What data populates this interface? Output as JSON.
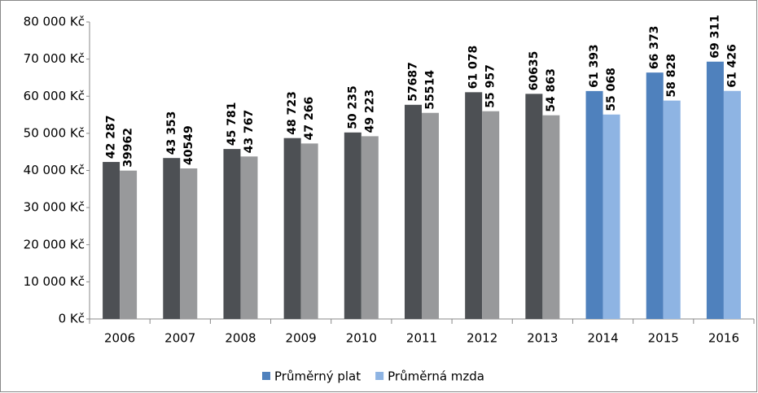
{
  "chart_data": {
    "type": "bar",
    "categories": [
      "2006",
      "2007",
      "2008",
      "2009",
      "2010",
      "2011",
      "2012",
      "2013",
      "2014",
      "2015",
      "2016"
    ],
    "series": [
      {
        "name": "Průměrný plat",
        "color": "#4f81bd",
        "colors": [
          "#4d5054",
          "#4d5054",
          "#4d5054",
          "#4d5054",
          "#4d5054",
          "#4d5054",
          "#4d5054",
          "#4d5054",
          "#4f81bd",
          "#4f81bd",
          "#4f81bd"
        ],
        "values": [
          42287,
          43353,
          45781,
          48723,
          50235,
          57687,
          61078,
          60635,
          61393,
          66373,
          69311
        ],
        "value_labels": [
          "42 287",
          "43 353",
          "45 781",
          "48 723",
          "50 235",
          "57687",
          "61 078",
          "60635",
          "61 393",
          "66 373",
          "69 311"
        ]
      },
      {
        "name": "Průměrná mzda",
        "color": "#8eb4e3",
        "colors": [
          "#98999b",
          "#98999b",
          "#98999b",
          "#98999b",
          "#98999b",
          "#98999b",
          "#98999b",
          "#98999b",
          "#8eb4e3",
          "#8eb4e3",
          "#8eb4e3"
        ],
        "values": [
          39962,
          40549,
          43767,
          47266,
          49223,
          55514,
          55957,
          54863,
          55068,
          58828,
          61426
        ],
        "value_labels": [
          "39962",
          "40549",
          "43 767",
          "47 266",
          "49 223",
          "55514",
          "55 957",
          "54 863",
          "55 068",
          "58 828",
          "61 426"
        ]
      }
    ],
    "ylim": [
      0,
      80000
    ],
    "yticks": [
      {
        "value": 0,
        "label": "0 Kč"
      },
      {
        "value": 10000,
        "label": "10 000 Kč"
      },
      {
        "value": 20000,
        "label": "20 000 Kč"
      },
      {
        "value": 30000,
        "label": "30 000 Kč"
      },
      {
        "value": 40000,
        "label": "40 000 Kč"
      },
      {
        "value": 50000,
        "label": "50 000 Kč"
      },
      {
        "value": 60000,
        "label": "60 000 Kč"
      },
      {
        "value": 70000,
        "label": "70 000 Kč"
      },
      {
        "value": 80000,
        "label": "80 000 Kč"
      }
    ],
    "grid": false,
    "legend": "bottom"
  }
}
